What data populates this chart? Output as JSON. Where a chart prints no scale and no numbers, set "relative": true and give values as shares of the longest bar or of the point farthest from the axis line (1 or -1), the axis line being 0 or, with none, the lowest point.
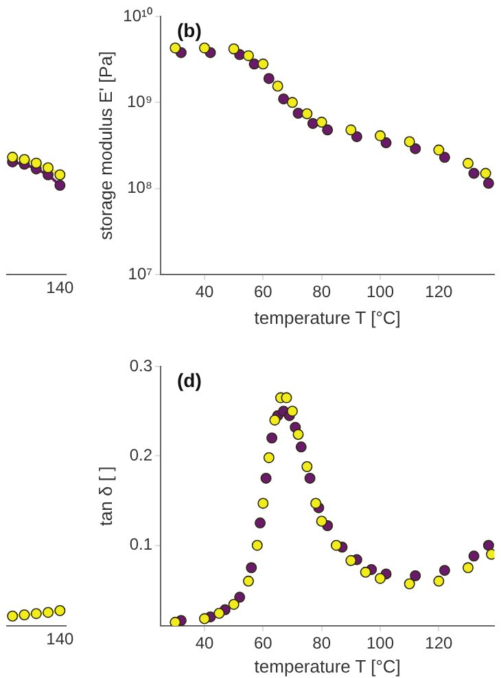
{
  "chart_data": [
    {
      "type": "line",
      "relative": true,
      "marker": "circle",
      "legend": false,
      "categories": [
        null,
        null,
        null,
        null,
        null
      ],
      "annotations": [
        "140"
      ],
      "series": [
        {
          "color": "#6b1a6b",
          "values": [
            0.96,
            0.94,
            0.9,
            0.85,
            0.76
          ]
        },
        {
          "color": "#f2ec1c",
          "values": [
            1,
            0.98,
            0.95,
            0.91,
            0.85
          ]
        }
      ]
    },
    {
      "type": "scatter",
      "title": "(b)",
      "xlabel": "temperature T [°C]",
      "ylabel": "storage modulus E' [Pa]",
      "log": "y",
      "marker": "circle",
      "legend": false,
      "xlim": [
        25,
        139
      ],
      "xticks": [
        40,
        60,
        80,
        100,
        120
      ],
      "ylim": [
        10000000.0,
        10000000000.0
      ],
      "yticks": [
        {
          "value": 10000000.0,
          "label": "10⁷"
        },
        {
          "value": 100000000.0,
          "label": "10⁸"
        },
        {
          "value": 1000000000.0,
          "label": "10⁹"
        },
        {
          "value": 10000000000.0,
          "label": "10¹⁰"
        }
      ],
      "series": [
        {
          "color": "#6b1a6b",
          "x": [
            32,
            42,
            52,
            57,
            62,
            67,
            72,
            77,
            82,
            92,
            102,
            112,
            122,
            132,
            137
          ],
          "values": [
            3800000000.0,
            3800000000.0,
            3600000000.0,
            2800000000.0,
            1900000000.0,
            1100000000.0,
            750000000.0,
            570000000.0,
            480000000.0,
            400000000.0,
            340000000.0,
            290000000.0,
            230000000.0,
            150000000.0,
            115000000.0
          ]
        },
        {
          "color": "#f2ec1c",
          "x": [
            30,
            40,
            50,
            55,
            60,
            65,
            70,
            75,
            80,
            90,
            100,
            110,
            120,
            130,
            136
          ],
          "values": [
            4300000000.0,
            4300000000.0,
            4200000000.0,
            3500000000.0,
            2800000000.0,
            1550000000.0,
            1000000000.0,
            740000000.0,
            590000000.0,
            480000000.0,
            410000000.0,
            350000000.0,
            280000000.0,
            196000000.0,
            150000000.0
          ]
        }
      ]
    },
    {
      "type": "line",
      "relative": true,
      "marker": "circle",
      "legend": false,
      "categories": [
        null,
        null,
        null,
        null,
        null
      ],
      "annotations": [
        "140"
      ],
      "series": [
        {
          "color": "#f2ec1c",
          "values": [
            0.64,
            0.72,
            0.8,
            0.88,
            1
          ]
        }
      ]
    },
    {
      "type": "scatter",
      "title": "(d)",
      "xlabel": "temperature T [°C]",
      "ylabel": "tan δ [ ]",
      "marker": "circle",
      "legend": false,
      "xlim": [
        25,
        139
      ],
      "xticks": [
        40,
        60,
        80,
        100,
        120
      ],
      "ylim": [
        0.01,
        0.3
      ],
      "yticks": [
        0.1,
        0.2,
        0.3
      ],
      "series": [
        {
          "color": "#6b1a6b",
          "x": [
            32,
            42,
            47,
            52,
            56,
            59,
            61,
            63,
            65,
            67,
            69,
            71,
            73,
            76,
            79,
            82,
            87,
            92,
            97,
            102,
            112,
            122,
            132,
            137
          ],
          "values": [
            0.016,
            0.02,
            0.028,
            0.042,
            0.075,
            0.125,
            0.175,
            0.22,
            0.245,
            0.25,
            0.245,
            0.232,
            0.21,
            0.175,
            0.142,
            0.122,
            0.098,
            0.084,
            0.073,
            0.068,
            0.066,
            0.072,
            0.088,
            0.1
          ]
        },
        {
          "color": "#f2ec1c",
          "x": [
            30,
            40,
            45,
            50,
            55,
            58,
            60,
            62,
            64,
            66,
            68,
            70,
            72,
            75,
            78,
            80,
            85,
            90,
            95,
            100,
            110,
            120,
            130,
            138
          ],
          "values": [
            0.014,
            0.018,
            0.024,
            0.034,
            0.06,
            0.1,
            0.147,
            0.198,
            0.24,
            0.265,
            0.265,
            0.25,
            0.224,
            0.188,
            0.147,
            0.127,
            0.1,
            0.083,
            0.07,
            0.063,
            0.057,
            0.06,
            0.075,
            0.09
          ]
        }
      ]
    }
  ]
}
